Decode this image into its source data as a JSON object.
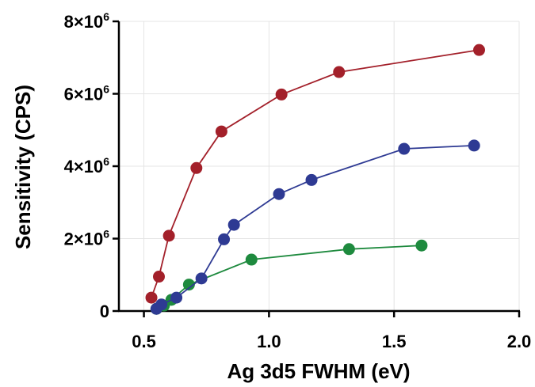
{
  "chart_data": {
    "type": "scatter",
    "title": "",
    "xlabel": "Ag 3d5 FWHM (eV)",
    "ylabel": "Sensitivity (CPS)",
    "xlim": [
      0.4,
      2.0
    ],
    "ylim": [
      0,
      8000000
    ],
    "grid": true,
    "legend": "none",
    "x_ticks": [
      {
        "value": 0.5,
        "label": "0.5"
      },
      {
        "value": 1.0,
        "label": "1.0"
      },
      {
        "value": 1.5,
        "label": "1.5"
      },
      {
        "value": 2.0,
        "label": "2.0"
      }
    ],
    "y_ticks": [
      {
        "value": 0,
        "label": "0",
        "base": "0",
        "exp": ""
      },
      {
        "value": 2000000,
        "label": "2×10⁶",
        "base": "2×10",
        "exp": "6"
      },
      {
        "value": 4000000,
        "label": "4×10⁶",
        "base": "4×10",
        "exp": "6"
      },
      {
        "value": 6000000,
        "label": "6×10⁶",
        "base": "6×10",
        "exp": "6"
      },
      {
        "value": 8000000,
        "label": "8×10⁶",
        "base": "8×10",
        "exp": "6"
      }
    ],
    "series": [
      {
        "color": "#a3202a",
        "points": [
          [
            0.53,
            370000
          ],
          [
            0.56,
            950000
          ],
          [
            0.6,
            2080000
          ],
          [
            0.71,
            3950000
          ],
          [
            0.81,
            4960000
          ],
          [
            1.05,
            5980000
          ],
          [
            1.28,
            6600000
          ],
          [
            1.84,
            7210000
          ]
        ]
      },
      {
        "color": "#2e3a93",
        "points": [
          [
            0.55,
            60000
          ],
          [
            0.57,
            180000
          ],
          [
            0.63,
            370000
          ],
          [
            0.73,
            900000
          ],
          [
            0.82,
            1980000
          ],
          [
            0.86,
            2380000
          ],
          [
            1.04,
            3230000
          ],
          [
            1.17,
            3620000
          ],
          [
            1.54,
            4480000
          ],
          [
            1.82,
            4570000
          ]
        ]
      },
      {
        "color": "#1e8a3e",
        "points": [
          [
            0.55,
            60000
          ],
          [
            0.58,
            150000
          ],
          [
            0.61,
            310000
          ],
          [
            0.68,
            730000
          ],
          [
            0.93,
            1420000
          ],
          [
            1.32,
            1710000
          ],
          [
            1.61,
            1810000
          ]
        ]
      }
    ]
  }
}
